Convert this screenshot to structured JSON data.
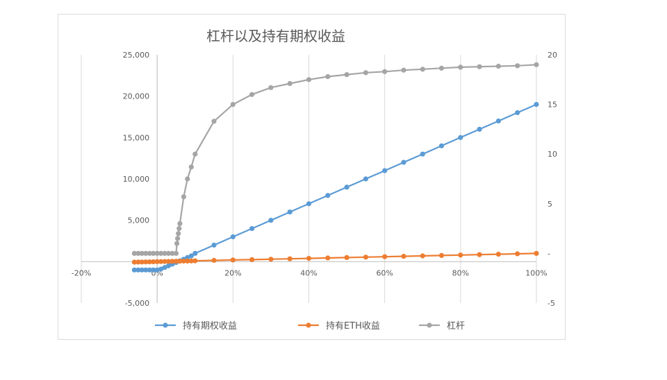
{
  "chart_data": {
    "type": "line",
    "title": "杠杆以及持有期权收益",
    "x_ticks": [
      "-20%",
      "0%",
      "20%",
      "40%",
      "60%",
      "80%",
      "100%"
    ],
    "y_left_ticks": [
      "25,000",
      "20,000",
      "15,000",
      "10,000",
      "5,000",
      "-",
      "-5,000"
    ],
    "y_right_ticks": [
      "20",
      "15",
      "10",
      "5",
      "-",
      "-5"
    ],
    "xlim": [
      -0.2,
      1.0
    ],
    "ylim_left": [
      -5000,
      25000
    ],
    "ylim_right": [
      -5,
      20
    ],
    "grid": "vertical",
    "legend_position": "bottom",
    "series": [
      {
        "name": "持有期权收益",
        "axis": "left",
        "color": "#5b9bd5",
        "x": [
          -0.06,
          -0.05,
          -0.04,
          -0.03,
          -0.02,
          -0.01,
          0.0,
          0.01,
          0.02,
          0.03,
          0.04,
          0.05,
          0.06,
          0.07,
          0.08,
          0.09,
          0.1,
          0.15,
          0.2,
          0.25,
          0.3,
          0.35,
          0.4,
          0.45,
          0.5,
          0.55,
          0.6,
          0.65,
          0.7,
          0.75,
          0.8,
          0.85,
          0.9,
          0.95,
          1.0
        ],
        "y": [
          -1000,
          -1000,
          -1000,
          -1000,
          -1000,
          -1000,
          -1000,
          -900,
          -700,
          -500,
          -300,
          -100,
          100,
          300,
          500,
          700,
          1000,
          2000,
          3000,
          4000,
          5000,
          6000,
          7000,
          8000,
          9000,
          10000,
          11000,
          12000,
          13000,
          14000,
          15000,
          16000,
          17000,
          18000,
          19000
        ]
      },
      {
        "name": "持有ETH收益",
        "axis": "left",
        "color": "#ed7d31",
        "x": [
          -0.06,
          -0.05,
          -0.04,
          -0.03,
          -0.02,
          -0.01,
          0.0,
          0.01,
          0.02,
          0.03,
          0.04,
          0.05,
          0.06,
          0.07,
          0.08,
          0.09,
          0.1,
          0.15,
          0.2,
          0.25,
          0.3,
          0.35,
          0.4,
          0.45,
          0.5,
          0.55,
          0.6,
          0.65,
          0.7,
          0.75,
          0.8,
          0.85,
          0.9,
          0.95,
          1.0
        ],
        "y": [
          -60,
          -50,
          -40,
          -30,
          -20,
          -10,
          0,
          10,
          20,
          30,
          40,
          50,
          60,
          70,
          80,
          90,
          100,
          150,
          200,
          250,
          300,
          350,
          400,
          450,
          500,
          550,
          600,
          650,
          700,
          750,
          800,
          850,
          900,
          950,
          1000
        ]
      },
      {
        "name": "杠杆",
        "axis": "right",
        "color": "#a5a5a5",
        "x": [
          -0.06,
          -0.05,
          -0.04,
          -0.03,
          -0.02,
          -0.01,
          0.0,
          0.01,
          0.02,
          0.03,
          0.04,
          0.05,
          0.052,
          0.054,
          0.056,
          0.058,
          0.06,
          0.07,
          0.08,
          0.09,
          0.1,
          0.15,
          0.2,
          0.25,
          0.3,
          0.35,
          0.4,
          0.45,
          0.5,
          0.55,
          0.6,
          0.65,
          0.7,
          0.75,
          0.8,
          0.85,
          0.9,
          0.95,
          1.0
        ],
        "y": [
          0,
          0,
          0,
          0,
          0,
          0,
          0,
          0,
          0,
          0,
          0,
          0,
          1.0,
          1.5,
          2.0,
          2.5,
          3.0,
          5.7,
          7.5,
          8.7,
          10,
          13.3,
          15,
          16,
          16.7,
          17.1,
          17.5,
          17.8,
          18,
          18.2,
          18.3,
          18.45,
          18.55,
          18.65,
          18.75,
          18.8,
          18.85,
          18.9,
          19
        ]
      }
    ]
  }
}
